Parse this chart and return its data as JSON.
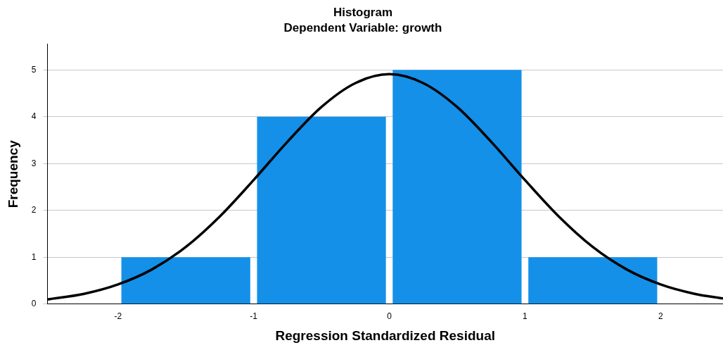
{
  "chart_data": {
    "type": "histogram",
    "title": "Histogram",
    "subtitle": "Dependent Variable: growth",
    "xlabel": "Regression Standardized Residual",
    "ylabel": "Frequency",
    "bins": [
      -2,
      -1,
      0,
      1,
      2
    ],
    "values": [
      1,
      4,
      5,
      1
    ],
    "color": "#1490e8",
    "series": [
      {
        "type": "line",
        "color": "#000000",
        "x": [
          -2.52,
          -2.25,
          -2,
          -1.75,
          -1.5,
          -1.25,
          -1,
          -0.75,
          -0.5,
          -0.25,
          0,
          0.25,
          0.5,
          0.75,
          1,
          1.25,
          1.5,
          1.75,
          2,
          2.25,
          2.46
        ],
        "values": [
          0.1,
          0.22,
          0.42,
          0.74,
          1.22,
          1.87,
          2.65,
          3.47,
          4.21,
          4.72,
          4.91,
          4.72,
          4.21,
          3.47,
          2.65,
          1.87,
          1.22,
          0.74,
          0.42,
          0.22,
          0.12
        ]
      }
    ],
    "xlim": [
      -2.52,
      2.46
    ],
    "xticks": [
      -2,
      -1,
      0,
      1,
      2
    ],
    "ylim": [
      0,
      5.55
    ],
    "yticks": [
      0,
      1,
      2,
      3,
      4,
      5
    ],
    "grid": "y",
    "marker": "none",
    "line_style": "solid"
  }
}
